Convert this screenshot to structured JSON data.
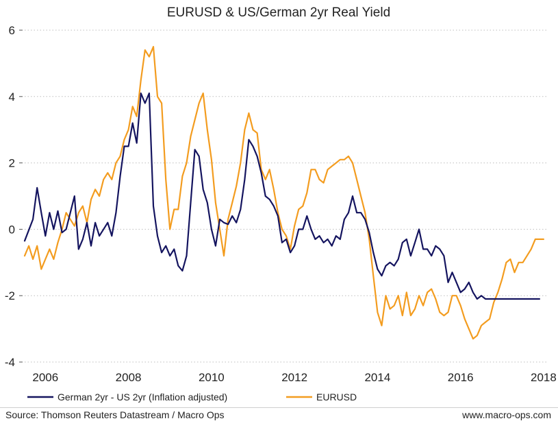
{
  "chart_data": {
    "type": "line",
    "title": "EURUSD & US/German 2yr Real Yield",
    "xlabel": "",
    "ylabel": "",
    "xlim": [
      2005.5,
      2018.1
    ],
    "ylim": [
      -4,
      6
    ],
    "x_ticks": [
      2006,
      2008,
      2010,
      2012,
      2014,
      2016,
      2018
    ],
    "x_tick_labels": [
      "2006",
      "2008",
      "2010",
      "2012",
      "2014",
      "2016",
      "2018"
    ],
    "y_ticks": [
      6,
      4,
      2,
      0,
      -2,
      -4
    ],
    "y_tick_labels": [
      "6",
      "4",
      "2",
      "0",
      "-2",
      "-4"
    ],
    "grid": "horizontal-dotted",
    "legend_position": "bottom",
    "series": [
      {
        "name": "German 2yr - US 2yr (Inflation adjusted)",
        "color": "#14145f",
        "x": [
          2005.5,
          2005.7,
          2005.8,
          2005.9,
          2006.0,
          2006.1,
          2006.2,
          2006.3,
          2006.4,
          2006.5,
          2006.6,
          2006.7,
          2006.8,
          2006.9,
          2007.0,
          2007.1,
          2007.2,
          2007.3,
          2007.4,
          2007.5,
          2007.6,
          2007.7,
          2007.8,
          2007.9,
          2008.0,
          2008.1,
          2008.2,
          2008.3,
          2008.4,
          2008.5,
          2008.6,
          2008.7,
          2008.8,
          2008.9,
          2009.0,
          2009.1,
          2009.2,
          2009.3,
          2009.4,
          2009.5,
          2009.6,
          2009.7,
          2009.8,
          2009.9,
          2010.0,
          2010.1,
          2010.2,
          2010.3,
          2010.4,
          2010.5,
          2010.6,
          2010.7,
          2010.8,
          2010.9,
          2011.0,
          2011.1,
          2011.2,
          2011.3,
          2011.4,
          2011.5,
          2011.6,
          2011.7,
          2011.8,
          2011.9,
          2012.0,
          2012.1,
          2012.2,
          2012.3,
          2012.4,
          2012.5,
          2012.6,
          2012.7,
          2012.8,
          2012.9,
          2013.0,
          2013.1,
          2013.2,
          2013.3,
          2013.4,
          2013.5,
          2013.6,
          2013.7,
          2013.8,
          2013.9,
          2014.0,
          2014.1,
          2014.2,
          2014.3,
          2014.4,
          2014.5,
          2014.6,
          2014.7,
          2014.8,
          2014.9,
          2015.0,
          2015.1,
          2015.2,
          2015.3,
          2015.4,
          2015.5,
          2015.6,
          2015.7,
          2015.8,
          2015.9,
          2016.0,
          2016.1,
          2016.2,
          2016.3,
          2016.4,
          2016.5,
          2016.6,
          2016.7,
          2016.8,
          2016.9,
          2017.0,
          2017.1,
          2017.2,
          2017.3,
          2017.4,
          2017.5,
          2017.6,
          2017.7,
          2017.8,
          2017.9
        ],
        "values": [
          -0.35,
          0.3,
          1.25,
          0.5,
          -0.2,
          0.5,
          0.0,
          0.55,
          -0.1,
          0.0,
          0.5,
          1.0,
          -0.6,
          -0.3,
          0.2,
          -0.5,
          0.2,
          -0.2,
          0.0,
          0.2,
          -0.2,
          0.5,
          1.6,
          2.5,
          2.5,
          3.2,
          2.6,
          4.1,
          3.8,
          4.1,
          0.7,
          -0.2,
          -0.7,
          -0.5,
          -0.8,
          -0.6,
          -1.1,
          -1.25,
          -0.8,
          0.8,
          2.4,
          2.2,
          1.2,
          0.8,
          0.0,
          -0.5,
          0.3,
          0.2,
          0.15,
          0.4,
          0.2,
          0.6,
          1.5,
          2.7,
          2.5,
          2.2,
          1.7,
          1.0,
          0.9,
          0.7,
          0.4,
          -0.4,
          -0.3,
          -0.7,
          -0.5,
          0.0,
          0.0,
          0.4,
          0.0,
          -0.3,
          -0.2,
          -0.4,
          -0.3,
          -0.5,
          -0.2,
          -0.3,
          0.3,
          0.5,
          1.0,
          0.5,
          0.5,
          0.3,
          -0.1,
          -0.7,
          -1.2,
          -1.4,
          -1.1,
          -1.0,
          -1.1,
          -0.9,
          -0.4,
          -0.3,
          -0.8,
          -0.4,
          0.0,
          -0.6,
          -0.6,
          -0.8,
          -0.5,
          -0.6,
          -0.8,
          -1.6,
          -1.3,
          -1.6,
          -1.9,
          -1.8,
          -1.6,
          -1.9,
          -2.1,
          -2.0,
          -2.1,
          -2.1,
          -2.1,
          -2.1,
          -2.1,
          -2.1,
          -2.1,
          -2.1,
          -2.1,
          -2.1,
          -2.1,
          -2.1,
          -2.1,
          -2.1
        ],
        "end_x": 2017.9
      },
      {
        "name": "EURUSD",
        "color": "#f39c1f",
        "x": [
          2005.5,
          2005.6,
          2005.7,
          2005.8,
          2005.9,
          2006.0,
          2006.1,
          2006.2,
          2006.3,
          2006.4,
          2006.5,
          2006.6,
          2006.7,
          2006.8,
          2006.9,
          2007.0,
          2007.1,
          2007.2,
          2007.3,
          2007.4,
          2007.5,
          2007.6,
          2007.7,
          2007.8,
          2007.9,
          2008.0,
          2008.1,
          2008.2,
          2008.3,
          2008.4,
          2008.5,
          2008.6,
          2008.7,
          2008.8,
          2008.9,
          2009.0,
          2009.1,
          2009.2,
          2009.3,
          2009.4,
          2009.5,
          2009.6,
          2009.7,
          2009.8,
          2009.9,
          2010.0,
          2010.1,
          2010.2,
          2010.3,
          2010.4,
          2010.5,
          2010.6,
          2010.7,
          2010.8,
          2010.9,
          2011.0,
          2011.1,
          2011.2,
          2011.3,
          2011.4,
          2011.5,
          2011.6,
          2011.7,
          2011.8,
          2011.9,
          2012.0,
          2012.1,
          2012.2,
          2012.3,
          2012.4,
          2012.5,
          2012.6,
          2012.7,
          2012.8,
          2012.9,
          2013.0,
          2013.1,
          2013.2,
          2013.3,
          2013.4,
          2013.5,
          2013.6,
          2013.7,
          2013.8,
          2013.9,
          2014.0,
          2014.1,
          2014.2,
          2014.3,
          2014.4,
          2014.5,
          2014.6,
          2014.7,
          2014.8,
          2014.9,
          2015.0,
          2015.1,
          2015.2,
          2015.3,
          2015.4,
          2015.5,
          2015.6,
          2015.7,
          2015.8,
          2015.9,
          2016.0,
          2016.1,
          2016.2,
          2016.3,
          2016.4,
          2016.5,
          2016.6,
          2016.7,
          2016.8,
          2016.9,
          2017.0,
          2017.1,
          2017.2,
          2017.3,
          2017.4,
          2017.5,
          2017.6,
          2017.7,
          2017.8,
          2017.9,
          2018.0
        ],
        "values": [
          -0.8,
          -0.5,
          -0.9,
          -0.5,
          -1.2,
          -0.9,
          -0.6,
          -0.9,
          -0.4,
          0.0,
          0.5,
          0.3,
          0.1,
          0.5,
          0.7,
          0.2,
          0.9,
          1.2,
          1.0,
          1.5,
          1.7,
          1.5,
          2.0,
          2.2,
          2.7,
          3.0,
          3.7,
          3.4,
          4.5,
          5.4,
          5.2,
          5.5,
          4.0,
          3.8,
          1.5,
          0.0,
          0.6,
          0.6,
          1.6,
          2.0,
          2.8,
          3.3,
          3.8,
          4.1,
          3.0,
          2.1,
          0.8,
          0.0,
          -0.8,
          0.3,
          0.8,
          1.3,
          2.0,
          3.0,
          3.5,
          3.0,
          2.9,
          1.8,
          1.5,
          1.8,
          1.2,
          0.5,
          0.0,
          -0.2,
          -0.6,
          0.1,
          0.6,
          0.7,
          1.1,
          1.8,
          1.8,
          1.5,
          1.4,
          1.8,
          1.9,
          2.0,
          2.1,
          2.1,
          2.2,
          2.0,
          1.5,
          1.0,
          0.5,
          -0.3,
          -1.4,
          -2.5,
          -2.9,
          -2.0,
          -2.4,
          -2.3,
          -2.0,
          -2.6,
          -1.9,
          -2.6,
          -2.4,
          -2.0,
          -2.3,
          -1.9,
          -1.8,
          -2.1,
          -2.5,
          -2.6,
          -2.5,
          -2.0,
          -2.0,
          -2.3,
          -2.7,
          -3.0,
          -3.3,
          -3.2,
          -2.9,
          -2.8,
          -2.7,
          -2.2,
          -1.9,
          -1.5,
          -1.0,
          -0.9,
          -1.3,
          -1.0,
          -1.0,
          -0.8,
          -0.6,
          -0.3,
          -0.3,
          -0.3
        ]
      }
    ],
    "source": "Source: Thomson Reuters Datastream / Macro Ops",
    "website": "www.macro-ops.com"
  }
}
